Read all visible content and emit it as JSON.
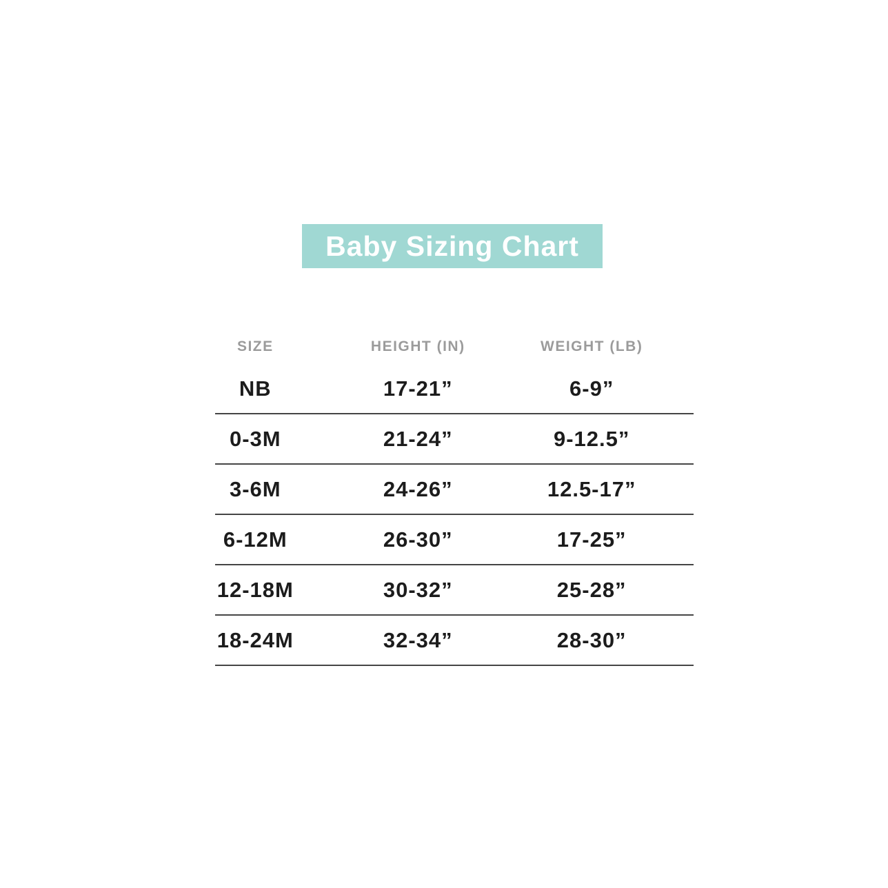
{
  "title": {
    "text": "Baby Sizing Chart"
  },
  "colors": {
    "banner_background": "#a0d8d3",
    "banner_text": "#ffffff",
    "header_text": "#9b9b9b",
    "body_text": "#1c1c1c",
    "divider": "#454545",
    "page_background": "#ffffff"
  },
  "chart_data": {
    "type": "table",
    "title": "Baby Sizing Chart",
    "columns": [
      "SIZE",
      "HEIGHT (IN)",
      "WEIGHT (LB)"
    ],
    "rows": [
      [
        "NB",
        "17-21”",
        "6-9”"
      ],
      [
        "0-3M",
        "21-24”",
        "9-12.5”"
      ],
      [
        "3-6M",
        "24-26”",
        "12.5-17”"
      ],
      [
        "6-12M",
        "26-30”",
        "17-25”"
      ],
      [
        "12-18M",
        "30-32”",
        "25-28”"
      ],
      [
        "18-24M",
        "32-34”",
        "28-30”"
      ]
    ],
    "layout": {
      "grid": "horizontal rules under each data row",
      "header_style": "uppercase gray",
      "column_alignment": "center"
    }
  }
}
